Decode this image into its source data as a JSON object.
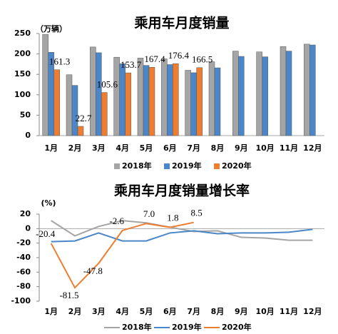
{
  "chart_data": [
    {
      "type": "bar",
      "title": "乘用车月度销量",
      "y_label": "（万辆）",
      "categories": [
        "1月",
        "2月",
        "3月",
        "4月",
        "5月",
        "6月",
        "7月",
        "8月",
        "9月",
        "10月",
        "11月",
        "12月"
      ],
      "ylim": [
        0,
        250
      ],
      "yticks": [
        0,
        50,
        100,
        150,
        200,
        250
      ],
      "series": [
        {
          "name": "2018年",
          "color": "#a5a5a5",
          "values": [
            248,
            149,
            217,
            192,
            190,
            188,
            160,
            181,
            207,
            205,
            218,
            224
          ]
        },
        {
          "name": "2019年",
          "color": "#4a86c8",
          "values": [
            204,
            123,
            203,
            176,
            172,
            174,
            154,
            166,
            194,
            193,
            207,
            222
          ]
        },
        {
          "name": "2020年",
          "color": "#ed7d31",
          "values": [
            161.3,
            22.7,
            105.6,
            153.7,
            167.4,
            176.4,
            166.5,
            null,
            null,
            null,
            null,
            null
          ],
          "show_labels": true
        }
      ]
    },
    {
      "type": "line",
      "title": "乘用车月度销量增长率",
      "y_label": "(%)",
      "categories": [
        "1月",
        "2月",
        "3月",
        "4月",
        "5月",
        "6月",
        "7月",
        "8月",
        "9月",
        "10月",
        "11月",
        "12月"
      ],
      "ylim": [
        -100,
        20
      ],
      "yticks": [
        20,
        0,
        -20,
        -40,
        -60,
        -80,
        -100
      ],
      "series": [
        {
          "name": "2018年",
          "color": "#a5a5a5",
          "values": [
            11,
            -10,
            3,
            11,
            8,
            2,
            -4,
            -3,
            -12,
            -13,
            -16,
            -16
          ]
        },
        {
          "name": "2019年",
          "color": "#4a86c8",
          "values": [
            -18,
            -17,
            -6,
            -17,
            -17,
            -6,
            -3,
            -7,
            -6,
            -6,
            -5,
            -1
          ]
        },
        {
          "name": "2020年",
          "color": "#ed7d31",
          "values": [
            -20.4,
            -81.5,
            -47.8,
            -2.6,
            7.0,
            1.8,
            8.5,
            null,
            null,
            null,
            null,
            null
          ],
          "value_labels": [
            "-20.4",
            "-81.5",
            "-47.8",
            "-2.6",
            "7.0",
            "1.8",
            "8.5",
            null,
            null,
            null,
            null,
            null
          ]
        }
      ]
    }
  ]
}
